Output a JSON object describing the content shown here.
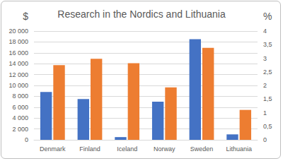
{
  "chart_data": {
    "type": "bar",
    "title": "Research in the Nordics and Lithuania",
    "ylabel": "$",
    "y2label": "%",
    "categories": [
      "Denmark",
      "Finland",
      "Iceland",
      "Norway",
      "Sweden",
      "Lithuania"
    ],
    "series": [
      {
        "color": "#4472c4",
        "values": [
          8800,
          7500,
          500,
          7000,
          18500,
          1000
        ]
      },
      {
        "color": "#ed7d31",
        "values": [
          2.75,
          2.98,
          2.82,
          1.93,
          3.38,
          1.1
        ],
        "axis": "y2"
      }
    ],
    "ylim": [
      0,
      20000
    ],
    "yticks": [
      0,
      {
        "value": 2000,
        "label": "2 000"
      },
      {
        "value": 4000,
        "label": "4 000"
      },
      {
        "value": 6000,
        "label": "6 000"
      },
      {
        "value": 8000,
        "label": "8 000"
      },
      {
        "value": 10000,
        "label": "10 000"
      },
      {
        "value": 12000,
        "label": "12 000"
      },
      {
        "value": 14000,
        "label": "14 000"
      },
      {
        "value": 16000,
        "label": "16 000"
      },
      {
        "value": 18000,
        "label": "18 000"
      },
      {
        "value": 20000,
        "label": "20 000"
      }
    ],
    "y2lim": [
      0,
      4
    ],
    "y2ticks": [
      0,
      {
        "value": 0.5,
        "label": "0,5"
      },
      1,
      {
        "value": 1.5,
        "label": "1,5"
      },
      2,
      {
        "value": 2.5,
        "label": "2,5"
      },
      3,
      {
        "value": 3.5,
        "label": "3,5"
      },
      4
    ],
    "grid": true
  }
}
